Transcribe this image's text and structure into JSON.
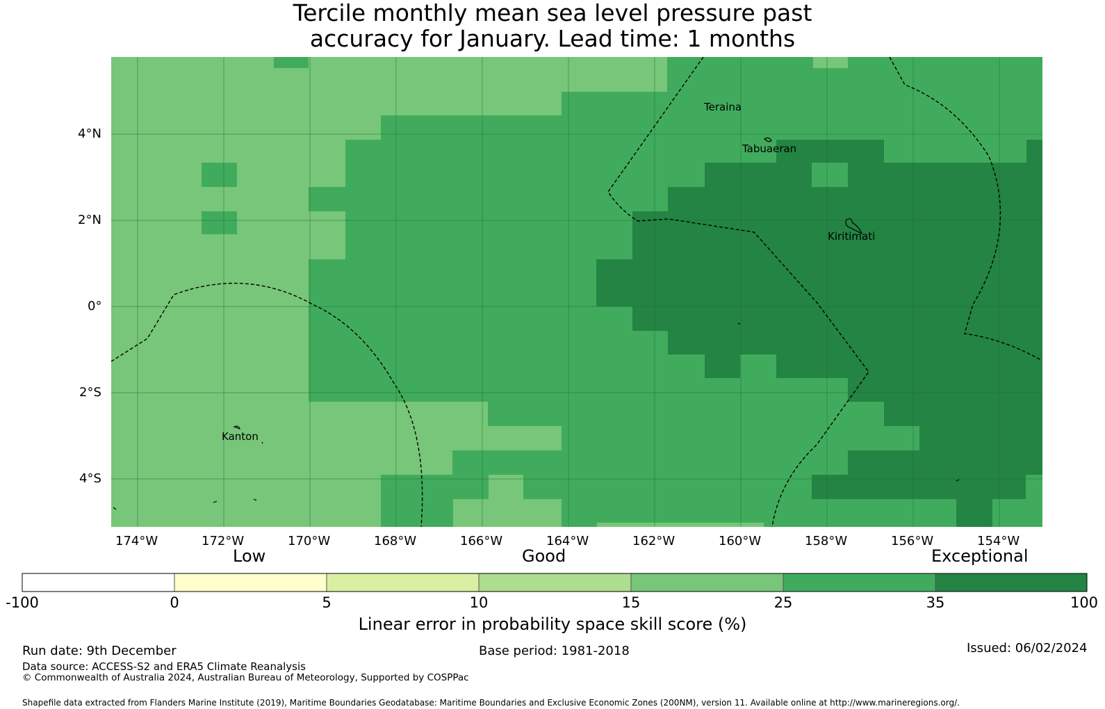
{
  "title": {
    "line1": "Tercile monthly mean sea level pressure past",
    "line2": "accuracy for January. Lead time: 1 months"
  },
  "map": {
    "lon_labels": [
      "174°W",
      "172°W",
      "170°W",
      "168°W",
      "166°W",
      "164°W",
      "162°W",
      "160°W",
      "158°W",
      "156°W",
      "154°W"
    ],
    "lat_labels": [
      "4°N",
      "2°N",
      "0°",
      "2°S",
      "4°S"
    ],
    "places": [
      "Teraina",
      "Tabuaeran",
      "Kiritimati",
      "Kanton"
    ],
    "colors": {
      "c15_25": "#78c679",
      "c25_35": "#41ab5d",
      "c35_100": "#238443",
      "grid": "#1f6f35",
      "boundary": "#000000"
    }
  },
  "legend": {
    "categories": [
      "Low",
      "Good",
      "Exceptional"
    ],
    "ticks": [
      "-100",
      "0",
      "5",
      "10",
      "15",
      "25",
      "35",
      "100"
    ],
    "colors": [
      "#ffffff",
      "#ffffcc",
      "#d9f0a3",
      "#addd8e",
      "#78c679",
      "#41ab5d",
      "#238443"
    ],
    "title": "Linear error in probability space skill score (%)"
  },
  "footer": {
    "run_date": "Run date: 9th December",
    "base_period": "Base period: 1981-2018",
    "issued": "Issued: 06/02/2024",
    "data_source": "Data source: ACCESS-S2 and ERA5 Climate Reanalysis",
    "copyright": "© Commonwealth of Australia 2024, Australian Bureau of Meteorology, Supported by COSPPac",
    "shapefile": "Shapefile data extracted from Flanders Marine Institute (2019), Maritime Boundaries Geodatabase: Maritime Boundaries and Exclusive Economic Zones (200NM), version 11. Available online at http://www.marineregions.org/."
  }
}
